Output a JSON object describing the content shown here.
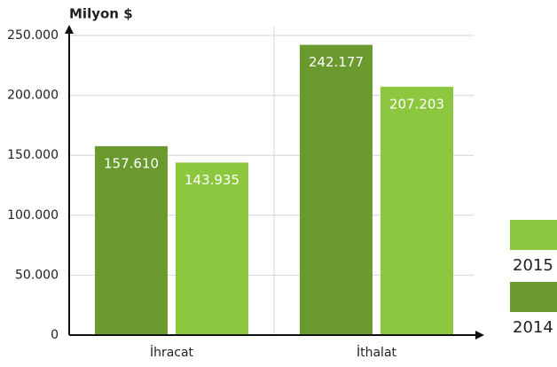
{
  "chart_data": {
    "type": "bar",
    "y_label": "Milyon $",
    "categories": [
      "İhracat",
      "İthalat"
    ],
    "series": [
      {
        "name": "2014",
        "color": "#6a9a2e",
        "values": [
          157610,
          242177
        ],
        "value_labels": [
          "157.610",
          "242.177"
        ]
      },
      {
        "name": "2015",
        "color": "#8dc63f",
        "values": [
          143935,
          207203
        ],
        "value_labels": [
          "143.935",
          "207.203"
        ]
      }
    ],
    "ylim": [
      0,
      250000
    ],
    "yticks": [
      0,
      {
        "value": 50000,
        "label": "50.000"
      },
      {
        "value": 100000,
        "label": "100.000"
      },
      {
        "value": 150000,
        "label": "150.000"
      },
      {
        "value": 200000,
        "label": "200.000"
      },
      {
        "value": 250000,
        "label": "250.000"
      }
    ],
    "grid": true,
    "legend": "right"
  }
}
